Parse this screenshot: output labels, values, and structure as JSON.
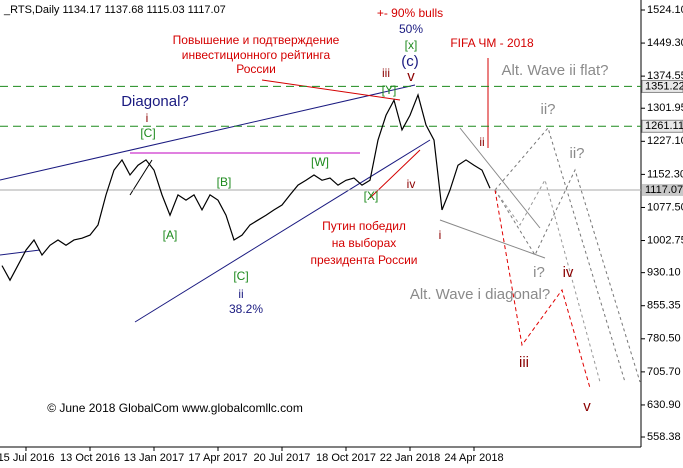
{
  "chart_data": {
    "type": "line",
    "title": "_RTS,Daily  1134.17 1137.68 1115.03 1117.07",
    "color": "#000000",
    "categories": [
      null,
      null,
      null,
      "15 Jul 2016",
      null,
      null,
      null,
      null,
      null,
      null,
      null,
      "13 Oct 2016",
      null,
      null,
      null,
      null,
      null,
      null,
      null,
      "13 Jan 2017",
      null,
      null,
      null,
      null,
      null,
      null,
      null,
      "17 Apr 2017",
      null,
      null,
      null,
      null,
      null,
      null,
      null,
      "20 Jul 2017",
      null,
      null,
      null,
      null,
      null,
      null,
      null,
      "18 Oct 2017",
      null,
      null,
      null,
      null,
      null,
      null,
      null,
      "22 Jan 2018",
      null,
      null,
      null,
      null,
      null,
      null,
      null,
      "24 Apr 2018",
      null,
      null
    ],
    "values": [
      946,
      913,
      947,
      981,
      1004,
      970,
      992,
      1004,
      992,
      1004,
      1008,
      1015,
      1038,
      1106,
      1162,
      1185,
      1151,
      1173,
      1185,
      1162,
      1106,
      1060,
      1106,
      1094,
      1106,
      1072,
      1106,
      1094,
      1060,
      1004,
      1015,
      1038,
      1049,
      1060,
      1072,
      1083,
      1106,
      1128,
      1139,
      1151,
      1139,
      1144,
      1128,
      1139,
      1144,
      1128,
      1139,
      1230,
      1286,
      1320,
      1253,
      1286,
      1332,
      1264,
      1230,
      1072,
      1117,
      1173,
      1185,
      1173,
      1162,
      1121
    ],
    "ylim": [
      535.8,
      1546.7
    ],
    "yticks": [
      558.38,
      {
        "value": 630.9,
        "label": "630.90"
      },
      {
        "value": 705.7,
        "label": "705.70"
      },
      {
        "value": 780.5,
        "label": "780.50"
      },
      855.35,
      {
        "value": 930.1,
        "label": "930.10"
      },
      1002.75,
      {
        "value": 1077.5,
        "label": "1077.50"
      },
      {
        "value": 1152.3,
        "label": "1152.30"
      },
      {
        "value": 1227.1,
        "label": "1227.10"
      },
      1301.95,
      1374.55,
      {
        "value": 1449.3,
        "label": "1449.30"
      },
      {
        "value": 1524.1,
        "label": "1524.10"
      }
    ],
    "levels": [
      1351.22,
      1261.11
    ],
    "level_color": "#1d8a1d",
    "last_price": 1117.07,
    "annotations": [
      "+- 90% bulls",
      "50%",
      "[x]",
      "(c)",
      "v",
      "iii",
      "[Y]",
      "FIFA ЧМ - 2018",
      "Alt. Wave ii flat?",
      "ii?",
      "ii?",
      "ii",
      "iv",
      "[X]",
      "i",
      "Путин победил",
      "на выборах",
      "президента России",
      "Повышение и подтверждение",
      "инвестиционного рейтинга",
      "России",
      "Diagonal?",
      "i",
      "[C]",
      "[B]",
      "[A]",
      "[W]",
      "[C]",
      "ii",
      "38.2%",
      "i?",
      "iv",
      "Alt. Wave i diagonal?",
      "iii",
      "v",
      "© June 2018 GlobalCom www.globalcomllc.com"
    ]
  }
}
